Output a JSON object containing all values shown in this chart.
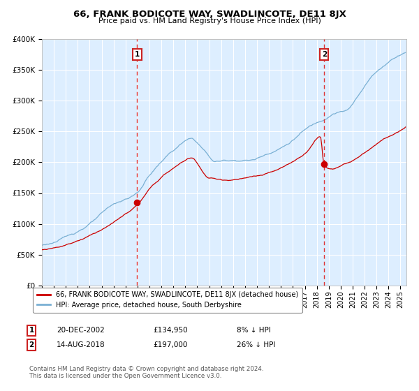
{
  "title": "66, FRANK BODICOTE WAY, SWADLINCOTE, DE11 8JX",
  "subtitle": "Price paid vs. HM Land Registry's House Price Index (HPI)",
  "legend_label_red": "66, FRANK BODICOTE WAY, SWADLINCOTE, DE11 8JX (detached house)",
  "legend_label_blue": "HPI: Average price, detached house, South Derbyshire",
  "annotation1_date": "20-DEC-2002",
  "annotation1_price": "£134,950",
  "annotation1_pct": "8% ↓ HPI",
  "annotation1_year": 2002.97,
  "annotation1_value": 134950,
  "annotation2_date": "14-AUG-2018",
  "annotation2_price": "£197,000",
  "annotation2_pct": "26% ↓ HPI",
  "annotation2_year": 2018.62,
  "annotation2_value": 197000,
  "footnote": "Contains HM Land Registry data © Crown copyright and database right 2024.\nThis data is licensed under the Open Government Licence v3.0.",
  "ylim": [
    0,
    400000
  ],
  "xlim_start": 1995.0,
  "xlim_end": 2025.5,
  "yticks": [
    0,
    50000,
    100000,
    150000,
    200000,
    250000,
    300000,
    350000,
    400000
  ],
  "ytick_labels": [
    "£0",
    "£50K",
    "£100K",
    "£150K",
    "£200K",
    "£250K",
    "£300K",
    "£350K",
    "£400K"
  ],
  "bg_color": "#ddeeff",
  "grid_color": "#ffffff",
  "red_color": "#cc0000",
  "blue_color": "#7ab0d4"
}
